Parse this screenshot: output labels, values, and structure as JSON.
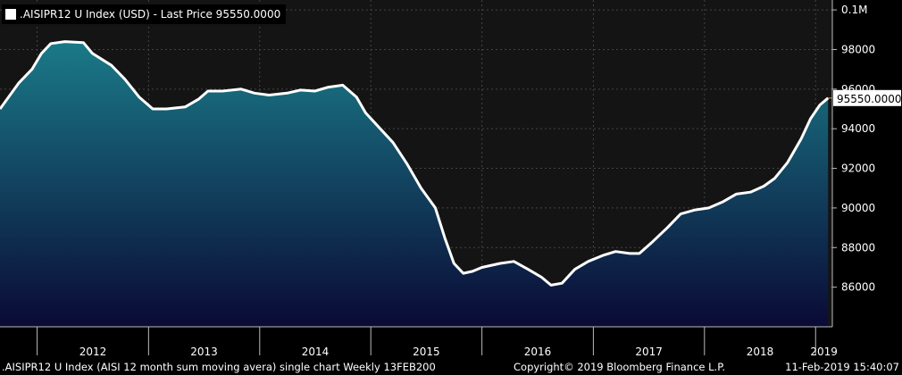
{
  "legend": {
    "label": ".AISIPR12 U Index (USD)  - Last Price 95550.0000"
  },
  "footer": {
    "left": ".AISIPR12 U Index (AISI 12 month sum moving avera) single chart  Weekly 13FEB200",
    "center": "Copyright© 2019 Bloomberg Finance L.P.",
    "right": "11-Feb-2019 15:40:07"
  },
  "colors": {
    "background": "#000000",
    "plot_background": "#141414",
    "area_top": "#1a7a88",
    "area_bottom": "#0a0a35",
    "line": "#ffffff",
    "last_price_line": "#f7941d",
    "grid": "#444444"
  },
  "chart_data": {
    "type": "area",
    "title": ".AISIPR12 U Index (USD)  - Last Price 95550.0000",
    "series": [
      {
        "name": ".AISIPR12 U Index",
        "points": [
          [
            "2011-09-01",
            95000
          ],
          [
            "2011-11-01",
            96300
          ],
          [
            "2011-12-15",
            97000
          ],
          [
            "2012-01-15",
            97800
          ],
          [
            "2012-02-15",
            98300
          ],
          [
            "2012-04-01",
            98400
          ],
          [
            "2012-06-01",
            98350
          ],
          [
            "2012-07-01",
            97800
          ],
          [
            "2012-09-01",
            97200
          ],
          [
            "2012-10-15",
            96500
          ],
          [
            "2012-12-01",
            95600
          ],
          [
            "2013-01-15",
            95000
          ],
          [
            "2013-03-01",
            95000
          ],
          [
            "2013-05-01",
            95100
          ],
          [
            "2013-06-15",
            95500
          ],
          [
            "2013-07-15",
            95900
          ],
          [
            "2013-09-01",
            95900
          ],
          [
            "2013-11-01",
            96000
          ],
          [
            "2013-12-15",
            95800
          ],
          [
            "2014-02-01",
            95700
          ],
          [
            "2014-04-01",
            95800
          ],
          [
            "2014-05-15",
            95950
          ],
          [
            "2014-07-01",
            95900
          ],
          [
            "2014-08-15",
            96100
          ],
          [
            "2014-10-01",
            96200
          ],
          [
            "2014-11-15",
            95600
          ],
          [
            "2014-12-15",
            94800
          ],
          [
            "2015-02-01",
            94000
          ],
          [
            "2015-03-15",
            93300
          ],
          [
            "2015-05-01",
            92200
          ],
          [
            "2015-06-15",
            91000
          ],
          [
            "2015-08-01",
            90000
          ],
          [
            "2015-09-01",
            88500
          ],
          [
            "2015-10-01",
            87200
          ],
          [
            "2015-11-01",
            86700
          ],
          [
            "2015-12-01",
            86800
          ],
          [
            "2016-01-01",
            87000
          ],
          [
            "2016-03-01",
            87200
          ],
          [
            "2016-04-15",
            87300
          ],
          [
            "2016-06-01",
            86900
          ],
          [
            "2016-07-15",
            86500
          ],
          [
            "2016-08-15",
            86100
          ],
          [
            "2016-09-20",
            86200
          ],
          [
            "2016-11-01",
            86900
          ],
          [
            "2016-12-15",
            87300
          ],
          [
            "2017-02-01",
            87600
          ],
          [
            "2017-03-15",
            87800
          ],
          [
            "2017-05-01",
            87700
          ],
          [
            "2017-06-01",
            87700
          ],
          [
            "2017-07-15",
            88300
          ],
          [
            "2017-09-01",
            89000
          ],
          [
            "2017-10-15",
            89700
          ],
          [
            "2017-12-01",
            89900
          ],
          [
            "2018-01-15",
            90000
          ],
          [
            "2018-03-01",
            90300
          ],
          [
            "2018-04-15",
            90700
          ],
          [
            "2018-06-01",
            90800
          ],
          [
            "2018-07-15",
            91100
          ],
          [
            "2018-08-20",
            91500
          ],
          [
            "2018-10-01",
            92300
          ],
          [
            "2018-11-15",
            93500
          ],
          [
            "2018-12-15",
            94500
          ],
          [
            "2019-01-15",
            95200
          ],
          [
            "2019-02-11",
            95550
          ]
        ]
      }
    ],
    "last_price": {
      "value": 95550,
      "label": "95550.0000"
    },
    "y_axis": {
      "side": "right",
      "range": [
        84000,
        100500
      ],
      "ticks": [
        {
          "value": 86000,
          "label": "86000"
        },
        {
          "value": 88000,
          "label": "88000"
        },
        {
          "value": 90000,
          "label": "90000"
        },
        {
          "value": 92000,
          "label": "92000"
        },
        {
          "value": 94000,
          "label": "94000"
        },
        {
          "value": 96000,
          "label": "96000"
        },
        {
          "value": 98000,
          "label": "98000"
        },
        {
          "value": 100000,
          "label": "0.1M"
        }
      ]
    },
    "x_axis": {
      "range": [
        "2011-09-01",
        "2019-02-25"
      ],
      "year_labels": [
        "2012",
        "2013",
        "2014",
        "2015",
        "2016",
        "2017",
        "2018",
        "2019"
      ]
    },
    "grid": true
  }
}
